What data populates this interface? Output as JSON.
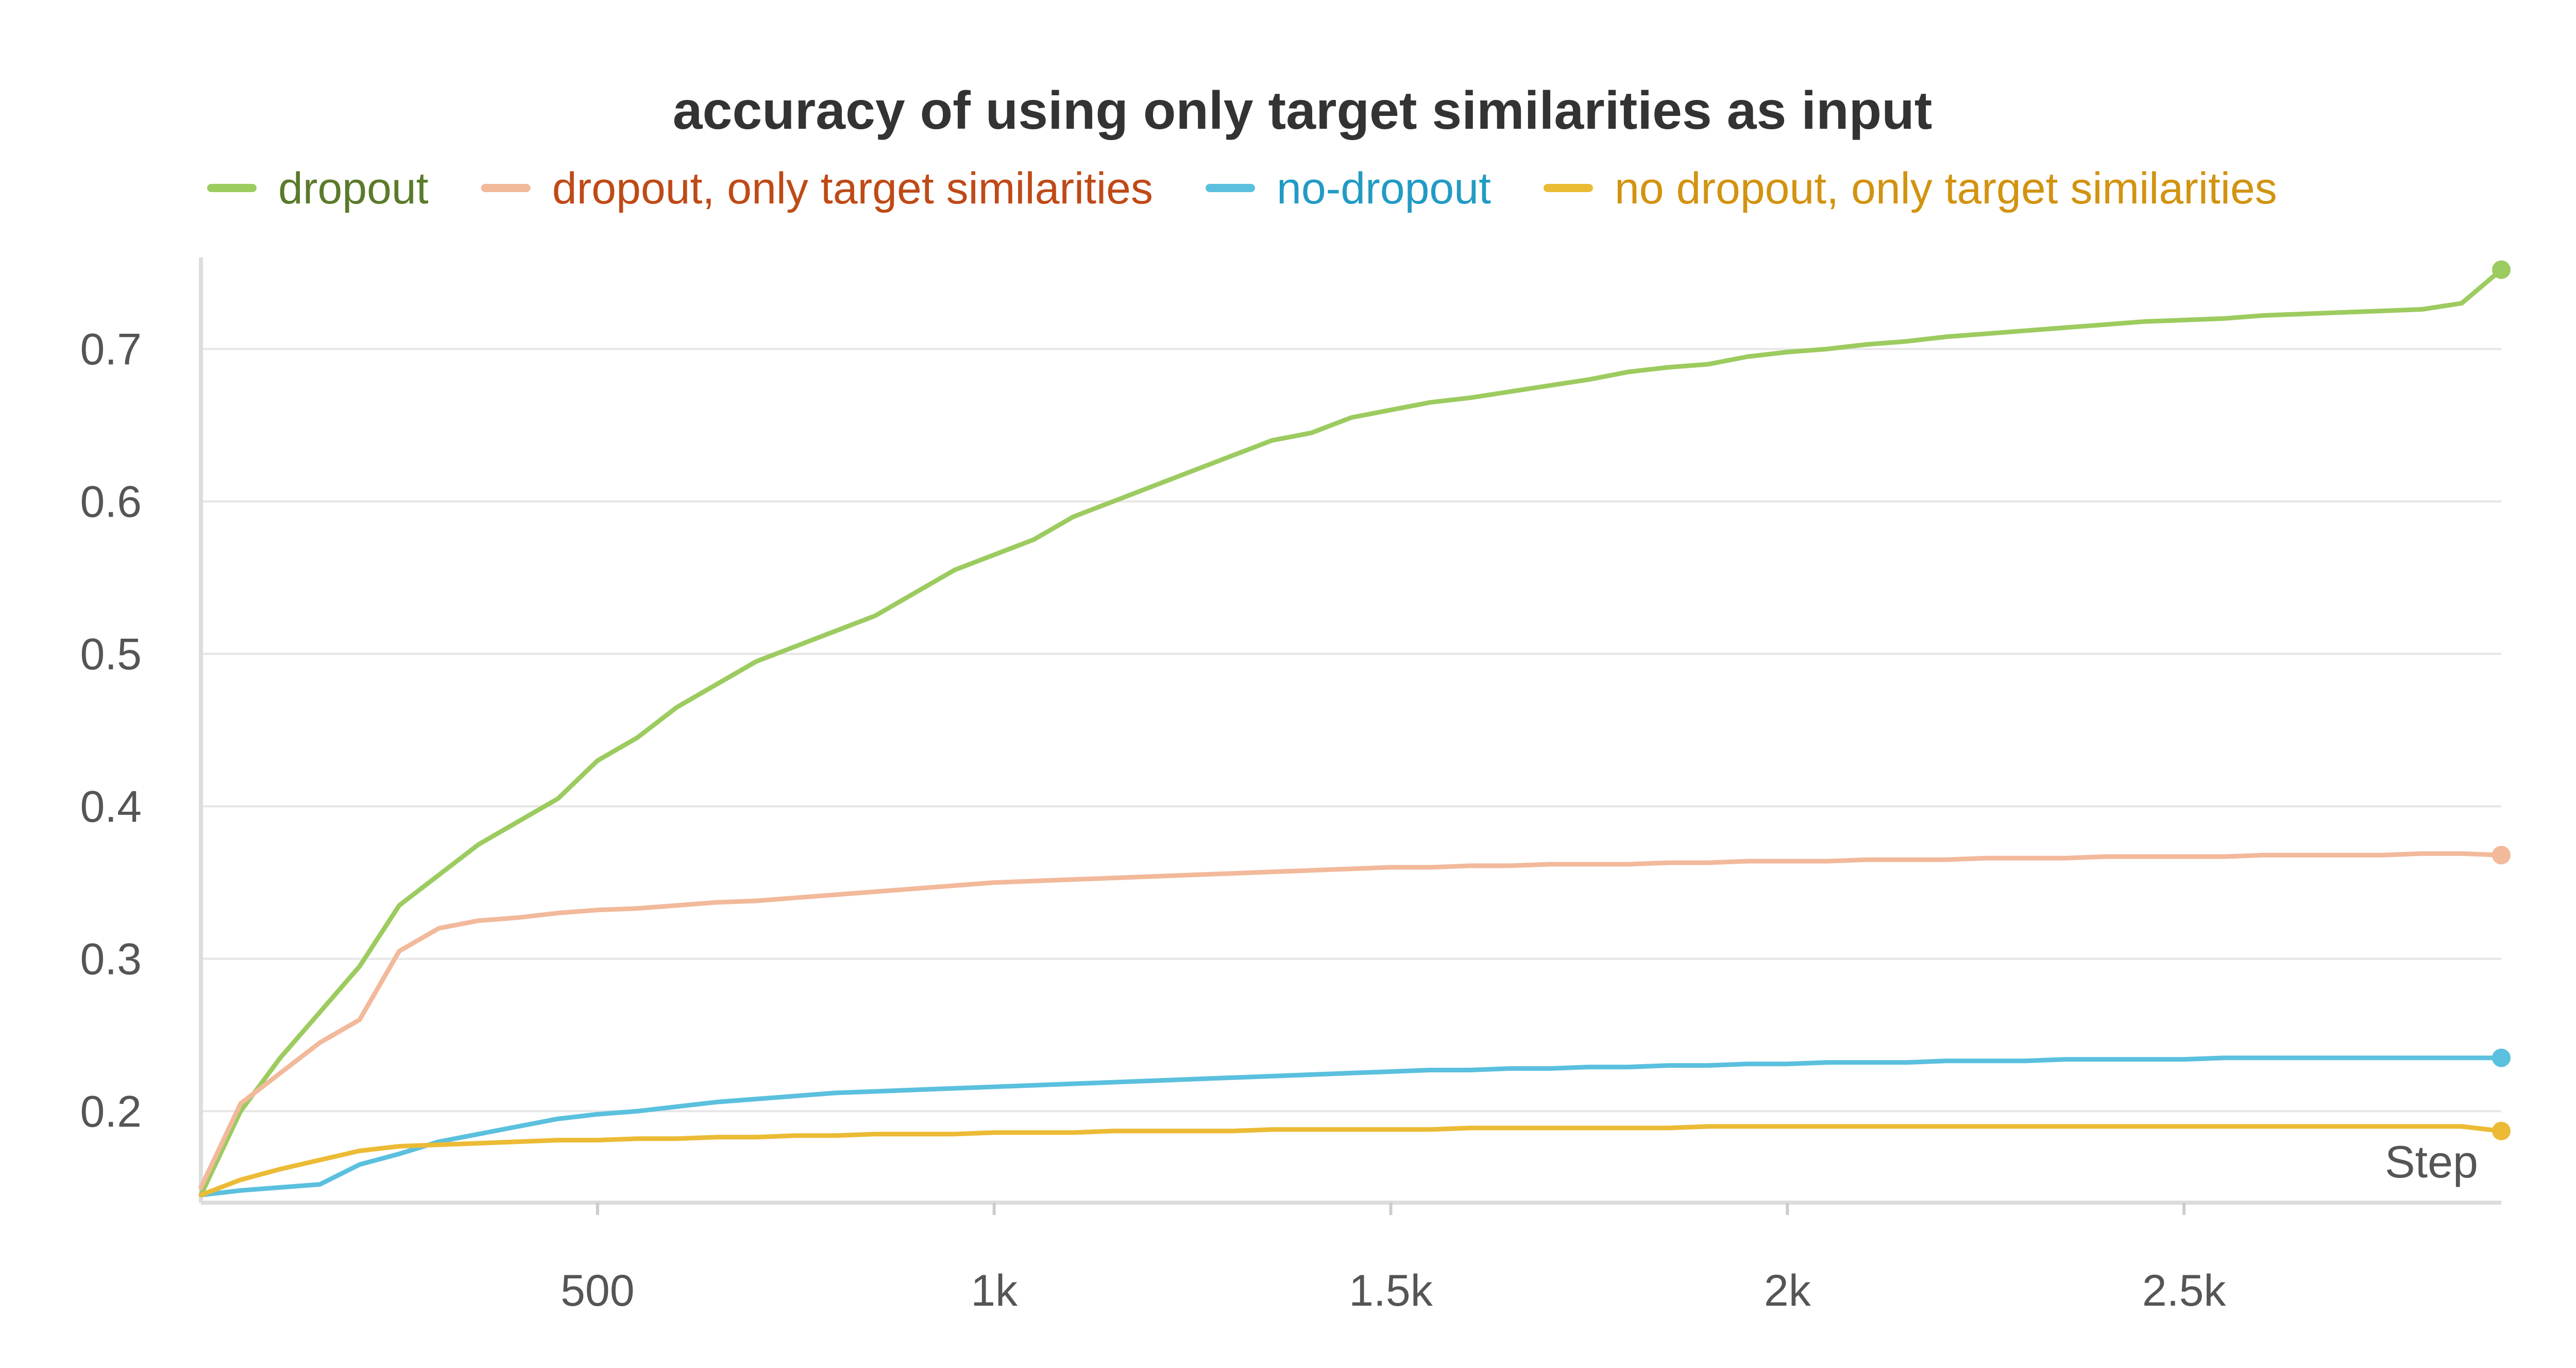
{
  "chart_data": {
    "type": "line",
    "title": "accuracy of using only target similarities as input",
    "xlabel": "Step",
    "ylabel": "",
    "xlim": [
      0,
      2900
    ],
    "ylim": [
      0.14,
      0.76
    ],
    "x_ticks": [
      500,
      1000,
      1500,
      2000,
      2500
    ],
    "x_tick_labels": [
      "500",
      "1k",
      "1.5k",
      "2k",
      "2.5k"
    ],
    "y_ticks": [
      0.2,
      0.3,
      0.4,
      0.5,
      0.6,
      0.7
    ],
    "y_tick_labels": [
      "0.2",
      "0.3",
      "0.4",
      "0.5",
      "0.6",
      "0.7"
    ],
    "grid": true,
    "legend_position": "top",
    "series": [
      {
        "name": "dropout",
        "color": "#9ccb5f",
        "label_color": "#5b7a2b",
        "x": [
          0,
          50,
          100,
          150,
          200,
          250,
          300,
          350,
          400,
          450,
          500,
          550,
          600,
          650,
          700,
          750,
          800,
          850,
          900,
          950,
          1000,
          1050,
          1100,
          1150,
          1200,
          1250,
          1300,
          1350,
          1400,
          1450,
          1500,
          1550,
          1600,
          1650,
          1700,
          1750,
          1800,
          1850,
          1900,
          1950,
          2000,
          2050,
          2100,
          2150,
          2200,
          2250,
          2300,
          2350,
          2400,
          2450,
          2500,
          2550,
          2600,
          2650,
          2700,
          2750,
          2800,
          2850,
          2900
        ],
        "y": [
          0.145,
          0.2,
          0.235,
          0.265,
          0.295,
          0.335,
          0.355,
          0.375,
          0.39,
          0.405,
          0.43,
          0.445,
          0.465,
          0.48,
          0.495,
          0.505,
          0.515,
          0.525,
          0.54,
          0.555,
          0.565,
          0.575,
          0.59,
          0.6,
          0.61,
          0.62,
          0.63,
          0.64,
          0.645,
          0.655,
          0.66,
          0.665,
          0.668,
          0.672,
          0.676,
          0.68,
          0.685,
          0.688,
          0.69,
          0.695,
          0.698,
          0.7,
          0.703,
          0.705,
          0.708,
          0.71,
          0.712,
          0.714,
          0.716,
          0.718,
          0.719,
          0.72,
          0.722,
          0.723,
          0.724,
          0.725,
          0.726,
          0.73,
          0.752
        ]
      },
      {
        "name": "dropout, only target similarities",
        "color": "#f2b99b",
        "label_color": "#bf4a17",
        "x": [
          0,
          50,
          100,
          150,
          200,
          250,
          300,
          350,
          400,
          450,
          500,
          550,
          600,
          650,
          700,
          750,
          800,
          850,
          900,
          950,
          1000,
          1050,
          1100,
          1150,
          1200,
          1250,
          1300,
          1350,
          1400,
          1450,
          1500,
          1550,
          1600,
          1650,
          1700,
          1750,
          1800,
          1850,
          1900,
          1950,
          2000,
          2050,
          2100,
          2150,
          2200,
          2250,
          2300,
          2350,
          2400,
          2450,
          2500,
          2550,
          2600,
          2650,
          2700,
          2750,
          2800,
          2850,
          2900
        ],
        "y": [
          0.15,
          0.205,
          0.225,
          0.245,
          0.26,
          0.305,
          0.32,
          0.325,
          0.327,
          0.33,
          0.332,
          0.333,
          0.335,
          0.337,
          0.338,
          0.34,
          0.342,
          0.344,
          0.346,
          0.348,
          0.35,
          0.351,
          0.352,
          0.353,
          0.354,
          0.355,
          0.356,
          0.357,
          0.358,
          0.359,
          0.36,
          0.36,
          0.361,
          0.361,
          0.362,
          0.362,
          0.362,
          0.363,
          0.363,
          0.364,
          0.364,
          0.364,
          0.365,
          0.365,
          0.365,
          0.366,
          0.366,
          0.366,
          0.367,
          0.367,
          0.367,
          0.367,
          0.368,
          0.368,
          0.368,
          0.368,
          0.369,
          0.369,
          0.368
        ]
      },
      {
        "name": "no-dropout",
        "color": "#5bc0de",
        "label_color": "#229bc4",
        "x": [
          0,
          50,
          100,
          150,
          200,
          250,
          300,
          350,
          400,
          450,
          500,
          550,
          600,
          650,
          700,
          750,
          800,
          850,
          900,
          950,
          1000,
          1050,
          1100,
          1150,
          1200,
          1250,
          1300,
          1350,
          1400,
          1450,
          1500,
          1550,
          1600,
          1650,
          1700,
          1750,
          1800,
          1850,
          1900,
          1950,
          2000,
          2050,
          2100,
          2150,
          2200,
          2250,
          2300,
          2350,
          2400,
          2450,
          2500,
          2550,
          2600,
          2650,
          2700,
          2750,
          2800,
          2850,
          2900
        ],
        "y": [
          0.145,
          0.148,
          0.15,
          0.152,
          0.165,
          0.172,
          0.18,
          0.185,
          0.19,
          0.195,
          0.198,
          0.2,
          0.203,
          0.206,
          0.208,
          0.21,
          0.212,
          0.213,
          0.214,
          0.215,
          0.216,
          0.217,
          0.218,
          0.219,
          0.22,
          0.221,
          0.222,
          0.223,
          0.224,
          0.225,
          0.226,
          0.227,
          0.227,
          0.228,
          0.228,
          0.229,
          0.229,
          0.23,
          0.23,
          0.231,
          0.231,
          0.232,
          0.232,
          0.232,
          0.233,
          0.233,
          0.233,
          0.234,
          0.234,
          0.234,
          0.234,
          0.235,
          0.235,
          0.235,
          0.235,
          0.235,
          0.235,
          0.235,
          0.235
        ]
      },
      {
        "name": "no dropout, only target similarities",
        "color": "#ecbb35",
        "label_color": "#d29310",
        "x": [
          0,
          50,
          100,
          150,
          200,
          250,
          300,
          350,
          400,
          450,
          500,
          550,
          600,
          650,
          700,
          750,
          800,
          850,
          900,
          950,
          1000,
          1050,
          1100,
          1150,
          1200,
          1250,
          1300,
          1350,
          1400,
          1450,
          1500,
          1550,
          1600,
          1650,
          1700,
          1750,
          1800,
          1850,
          1900,
          1950,
          2000,
          2050,
          2100,
          2150,
          2200,
          2250,
          2300,
          2350,
          2400,
          2450,
          2500,
          2550,
          2600,
          2650,
          2700,
          2750,
          2800,
          2850,
          2900
        ],
        "y": [
          0.145,
          0.155,
          0.162,
          0.168,
          0.174,
          0.177,
          0.178,
          0.179,
          0.18,
          0.181,
          0.181,
          0.182,
          0.182,
          0.183,
          0.183,
          0.184,
          0.184,
          0.185,
          0.185,
          0.185,
          0.186,
          0.186,
          0.186,
          0.187,
          0.187,
          0.187,
          0.187,
          0.188,
          0.188,
          0.188,
          0.188,
          0.188,
          0.189,
          0.189,
          0.189,
          0.189,
          0.189,
          0.189,
          0.19,
          0.19,
          0.19,
          0.19,
          0.19,
          0.19,
          0.19,
          0.19,
          0.19,
          0.19,
          0.19,
          0.19,
          0.19,
          0.19,
          0.19,
          0.19,
          0.19,
          0.19,
          0.19,
          0.19,
          0.187
        ]
      }
    ]
  }
}
